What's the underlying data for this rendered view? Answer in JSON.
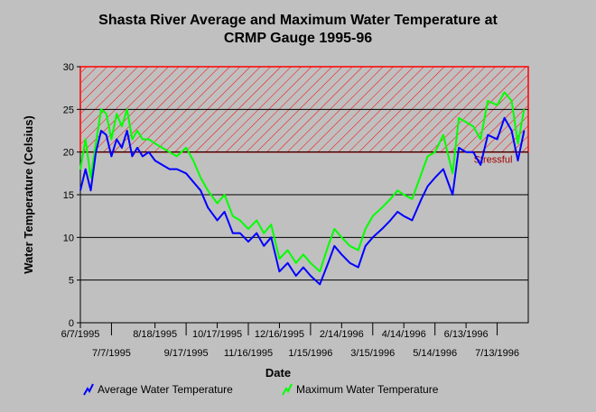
{
  "chart_data": {
    "type": "line",
    "title_line1": "Shasta River Average and Maximum Water Temperature at",
    "title_line2": "CRMP Gauge 1995-96",
    "xlabel": "Date",
    "ylabel": "Water Temperature (Celsius)",
    "ylim": [
      0,
      30
    ],
    "xlim": [
      "1995-06-07",
      "1996-08-12"
    ],
    "y_ticks": [
      0,
      5,
      10,
      15,
      20,
      25,
      30
    ],
    "x_ticks_top": [
      {
        "date": "1995-06-07",
        "label": "6/7/1995"
      },
      {
        "date": "1995-08-18",
        "label": "8/18/1995"
      },
      {
        "date": "1995-10-17",
        "label": "10/17/1995"
      },
      {
        "date": "1995-12-16",
        "label": "12/16/1995"
      },
      {
        "date": "1996-02-14",
        "label": "2/14/1996"
      },
      {
        "date": "1996-04-14",
        "label": "4/14/1996"
      },
      {
        "date": "1996-06-13",
        "label": "6/13/1996"
      }
    ],
    "x_ticks_bottom": [
      {
        "date": "1995-07-07",
        "label": "7/7/1995"
      },
      {
        "date": "1995-09-17",
        "label": "9/17/1995"
      },
      {
        "date": "1995-11-16",
        "label": "11/16/1995"
      },
      {
        "date": "1996-01-15",
        "label": "1/15/1996"
      },
      {
        "date": "1996-03-15",
        "label": "3/15/1996"
      },
      {
        "date": "1996-05-14",
        "label": "5/14/1996"
      },
      {
        "date": "1996-07-13",
        "label": "7/13/1996"
      }
    ],
    "grid": "horizontal",
    "stressful_zone": {
      "label": "Stressful",
      "from": 20,
      "to": 30,
      "color": "#ff0000"
    },
    "series": [
      {
        "name": "Average Water Temperature",
        "color": "#0000ff",
        "points": [
          [
            "1995-06-07",
            15.5
          ],
          [
            "1995-06-12",
            18.0
          ],
          [
            "1995-06-17",
            15.5
          ],
          [
            "1995-06-22",
            20.0
          ],
          [
            "1995-06-27",
            22.5
          ],
          [
            "1995-07-02",
            22.0
          ],
          [
            "1995-07-07",
            19.5
          ],
          [
            "1995-07-12",
            21.5
          ],
          [
            "1995-07-17",
            20.5
          ],
          [
            "1995-07-22",
            22.5
          ],
          [
            "1995-07-27",
            19.5
          ],
          [
            "1995-08-01",
            20.5
          ],
          [
            "1995-08-06",
            19.5
          ],
          [
            "1995-08-12",
            20.0
          ],
          [
            "1995-08-18",
            19.0
          ],
          [
            "1995-08-25",
            18.5
          ],
          [
            "1995-09-01",
            18.0
          ],
          [
            "1995-09-08",
            18.0
          ],
          [
            "1995-09-17",
            17.5
          ],
          [
            "1995-09-24",
            16.5
          ],
          [
            "1995-10-01",
            15.5
          ],
          [
            "1995-10-08",
            13.5
          ],
          [
            "1995-10-17",
            12.0
          ],
          [
            "1995-10-24",
            13.0
          ],
          [
            "1995-11-01",
            10.5
          ],
          [
            "1995-11-08",
            10.5
          ],
          [
            "1995-11-16",
            9.5
          ],
          [
            "1995-11-24",
            10.5
          ],
          [
            "1995-12-01",
            9.0
          ],
          [
            "1995-12-08",
            10.0
          ],
          [
            "1995-12-16",
            6.0
          ],
          [
            "1995-12-24",
            7.0
          ],
          [
            "1996-01-01",
            5.5
          ],
          [
            "1996-01-08",
            6.5
          ],
          [
            "1996-01-15",
            5.5
          ],
          [
            "1996-01-24",
            4.5
          ],
          [
            "1996-02-01",
            7.0
          ],
          [
            "1996-02-07",
            9.0
          ],
          [
            "1996-02-14",
            8.0
          ],
          [
            "1996-02-22",
            7.0
          ],
          [
            "1996-03-01",
            6.5
          ],
          [
            "1996-03-08",
            9.0
          ],
          [
            "1996-03-15",
            10.0
          ],
          [
            "1996-03-24",
            11.0
          ],
          [
            "1996-04-01",
            12.0
          ],
          [
            "1996-04-08",
            13.0
          ],
          [
            "1996-04-14",
            12.5
          ],
          [
            "1996-04-22",
            12.0
          ],
          [
            "1996-05-01",
            14.5
          ],
          [
            "1996-05-07",
            16.0
          ],
          [
            "1996-05-14",
            17.0
          ],
          [
            "1996-05-22",
            18.0
          ],
          [
            "1996-05-31",
            15.0
          ],
          [
            "1996-06-06",
            20.5
          ],
          [
            "1996-06-13",
            20.0
          ],
          [
            "1996-06-20",
            20.0
          ],
          [
            "1996-06-27",
            18.5
          ],
          [
            "1996-07-04",
            22.0
          ],
          [
            "1996-07-13",
            21.5
          ],
          [
            "1996-07-20",
            24.0
          ],
          [
            "1996-07-27",
            22.5
          ],
          [
            "1996-08-02",
            19.0
          ],
          [
            "1996-08-08",
            22.5
          ]
        ]
      },
      {
        "name": "Maximum Water Temperature",
        "color": "#00ff00",
        "points": [
          [
            "1995-06-07",
            18.0
          ],
          [
            "1995-06-12",
            21.5
          ],
          [
            "1995-06-17",
            17.0
          ],
          [
            "1995-06-22",
            21.0
          ],
          [
            "1995-06-27",
            25.0
          ],
          [
            "1995-07-02",
            24.5
          ],
          [
            "1995-07-07",
            21.5
          ],
          [
            "1995-07-12",
            24.5
          ],
          [
            "1995-07-17",
            23.0
          ],
          [
            "1995-07-22",
            25.0
          ],
          [
            "1995-07-27",
            21.5
          ],
          [
            "1995-08-01",
            22.5
          ],
          [
            "1995-08-06",
            21.5
          ],
          [
            "1995-08-12",
            21.5
          ],
          [
            "1995-08-18",
            21.0
          ],
          [
            "1995-08-25",
            20.5
          ],
          [
            "1995-09-01",
            20.0
          ],
          [
            "1995-09-08",
            19.5
          ],
          [
            "1995-09-17",
            20.5
          ],
          [
            "1995-09-24",
            19.0
          ],
          [
            "1995-10-01",
            17.0
          ],
          [
            "1995-10-08",
            15.5
          ],
          [
            "1995-10-17",
            14.0
          ],
          [
            "1995-10-24",
            15.0
          ],
          [
            "1995-11-01",
            12.5
          ],
          [
            "1995-11-08",
            12.0
          ],
          [
            "1995-11-16",
            11.0
          ],
          [
            "1995-11-24",
            12.0
          ],
          [
            "1995-12-01",
            10.5
          ],
          [
            "1995-12-08",
            11.5
          ],
          [
            "1995-12-16",
            7.5
          ],
          [
            "1995-12-24",
            8.5
          ],
          [
            "1996-01-01",
            7.0
          ],
          [
            "1996-01-08",
            8.0
          ],
          [
            "1996-01-15",
            7.0
          ],
          [
            "1996-01-24",
            6.0
          ],
          [
            "1996-02-01",
            9.0
          ],
          [
            "1996-02-07",
            11.0
          ],
          [
            "1996-02-14",
            10.0
          ],
          [
            "1996-02-22",
            9.0
          ],
          [
            "1996-03-01",
            8.5
          ],
          [
            "1996-03-08",
            11.0
          ],
          [
            "1996-03-15",
            12.5
          ],
          [
            "1996-03-24",
            13.5
          ],
          [
            "1996-04-01",
            14.5
          ],
          [
            "1996-04-08",
            15.5
          ],
          [
            "1996-04-14",
            15.0
          ],
          [
            "1996-04-22",
            14.5
          ],
          [
            "1996-05-01",
            17.5
          ],
          [
            "1996-05-07",
            19.5
          ],
          [
            "1996-05-14",
            20.0
          ],
          [
            "1996-05-22",
            22.0
          ],
          [
            "1996-05-31",
            17.5
          ],
          [
            "1996-06-06",
            24.0
          ],
          [
            "1996-06-13",
            23.5
          ],
          [
            "1996-06-20",
            23.0
          ],
          [
            "1996-06-27",
            21.5
          ],
          [
            "1996-07-04",
            26.0
          ],
          [
            "1996-07-13",
            25.5
          ],
          [
            "1996-07-20",
            27.0
          ],
          [
            "1996-07-27",
            26.0
          ],
          [
            "1996-08-02",
            21.0
          ],
          [
            "1996-08-08",
            25.0
          ]
        ]
      }
    ]
  }
}
